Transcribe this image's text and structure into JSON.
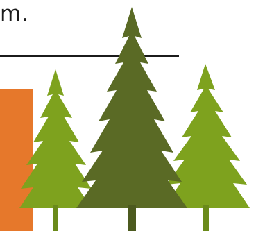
{
  "text": {
    "fragment": "m."
  },
  "colors": {
    "text": "#1b1b1b",
    "rule": "#1b1b1b",
    "orange_bar": "#e6782b",
    "tree_light": "#7ea21e",
    "tree_dark": "#5a6a25",
    "trunk_light": "#6a8a1a",
    "trunk_dark": "#4c5a1f"
  },
  "icons": {
    "trees": [
      "pine-tree-left-icon",
      "pine-tree-center-icon",
      "pine-tree-right-icon"
    ]
  }
}
